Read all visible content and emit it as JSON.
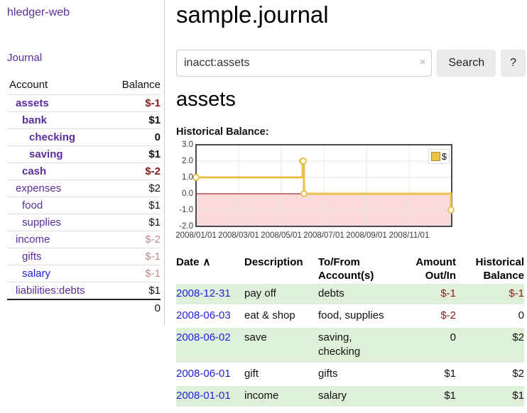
{
  "theme": {
    "purple-link": "#5a2d9e",
    "blue-link": "#2121df",
    "neg-strong": "#8c1a1a",
    "neg-soft": "#c38b8b",
    "row-green": "#dff0d8",
    "chart-line": "#e8c04a",
    "chart-line-border": "#b08c28",
    "chart-negative-fill": "#fadada",
    "chart-zero-line": "#8b0000"
  },
  "sidebar": {
    "app_title": "hledger-web",
    "journal_link": "Journal",
    "accounts_table": {
      "headers": {
        "account": "Account",
        "balance": "Balance"
      },
      "rows": [
        {
          "name": "assets",
          "balance": "$-1",
          "name_class": "d0 strong purple",
          "amount_class": "strong neg-strong"
        },
        {
          "name": "bank",
          "balance": "$1",
          "name_class": "d1 strong purple",
          "amount_class": "strong"
        },
        {
          "name": "checking",
          "balance": "0",
          "name_class": "d2 strong purple",
          "amount_class": "strong"
        },
        {
          "name": "saving",
          "balance": "$1",
          "name_class": "d2 strong purple",
          "amount_class": "strong"
        },
        {
          "name": "cash",
          "balance": "$-2",
          "name_class": "d1 strong purple",
          "amount_class": "strong neg-strong"
        },
        {
          "name": "expenses",
          "balance": "$2",
          "name_class": "d0 purple",
          "amount_class": ""
        },
        {
          "name": "food",
          "balance": "$1",
          "name_class": "d1 purple",
          "amount_class": ""
        },
        {
          "name": "supplies",
          "balance": "$1",
          "name_class": "d1 purple",
          "amount_class": ""
        },
        {
          "name": "income",
          "balance": "$-2",
          "name_class": "d0 purple",
          "amount_class": "neg-soft"
        },
        {
          "name": "gifts",
          "balance": "$-1",
          "name_class": "d1 purple",
          "amount_class": "neg-soft"
        },
        {
          "name": "salary",
          "balance": "$-1",
          "name_class": "d1 blue",
          "amount_class": "neg-soft"
        },
        {
          "name": "liabilities:debts",
          "balance": "$1",
          "name_class": "d0 purple",
          "amount_class": ""
        }
      ],
      "total": "0"
    }
  },
  "main": {
    "page_title": "sample.journal",
    "search": {
      "value": "inacct:assets",
      "clear_icon": "×",
      "search_button": "Search",
      "help_button": "?"
    },
    "account_heading": "assets",
    "chart_label": "Historical Balance:"
  },
  "chart_data": {
    "type": "line",
    "step": true,
    "title": "Historical Balance",
    "series": [
      {
        "name": "$",
        "points": [
          {
            "date": "2008-01-01",
            "value": 1
          },
          {
            "date": "2008-06-01",
            "value": 2
          },
          {
            "date": "2008-06-02",
            "value": 2
          },
          {
            "date": "2008-06-03",
            "value": 0
          },
          {
            "date": "2008-12-31",
            "value": -1
          }
        ]
      }
    ],
    "ylim": [
      -2,
      3
    ],
    "xlim": [
      "2008-01-01",
      "2008-12-31"
    ],
    "y_ticks": [
      {
        "label": "3.0",
        "value": 3
      },
      {
        "label": "2.0",
        "value": 2
      },
      {
        "label": "1.0",
        "value": 1
      },
      {
        "label": "0.0",
        "value": 0
      },
      {
        "label": "-1.0",
        "value": -1
      },
      {
        "label": "-2.0",
        "value": -2
      }
    ],
    "x_ticks": [
      {
        "label": "2008/01/01",
        "month": 0
      },
      {
        "label": "2008/03/01",
        "month": 2
      },
      {
        "label": "2008/05/01",
        "month": 4
      },
      {
        "label": "2008/07/01",
        "month": 6
      },
      {
        "label": "2008/09/01",
        "month": 8
      },
      {
        "label": "2008/11/01",
        "month": 10
      }
    ],
    "grid": true,
    "legend": {
      "label": "$",
      "position": "top-right"
    },
    "negative_region_highlighted": true
  },
  "register_table": {
    "headers": {
      "date": "Date",
      "sort_icon": "∧",
      "description": "Description",
      "accounts_line1": "To/From",
      "accounts_line2": "Account(s)",
      "amount_line1": "Amount",
      "amount_line2": "Out/In",
      "balance_line1": "Historical",
      "balance_line2": "Balance"
    },
    "rows": [
      {
        "date": "2008-12-31",
        "description": "pay off",
        "accounts": "debts",
        "amount": "$-1",
        "balance": "$-1",
        "row_class": "shaded",
        "amount_class": "neg",
        "balance_class": "neg"
      },
      {
        "date": "2008-06-03",
        "description": "eat & shop",
        "accounts": "food, supplies",
        "amount": "$-2",
        "balance": "0",
        "row_class": "",
        "amount_class": "neg",
        "balance_class": ""
      },
      {
        "date": "2008-06-02",
        "description": "save",
        "accounts": "saving, checking",
        "amount": "0",
        "balance": "$2",
        "row_class": "shaded",
        "amount_class": "",
        "balance_class": ""
      },
      {
        "date": "2008-06-01",
        "description": "gift",
        "accounts": "gifts",
        "amount": "$1",
        "balance": "$2",
        "row_class": "",
        "amount_class": "",
        "balance_class": ""
      },
      {
        "date": "2008-01-01",
        "description": "income",
        "accounts": "salary",
        "amount": "$1",
        "balance": "$1",
        "row_class": "shaded",
        "amount_class": "",
        "balance_class": ""
      }
    ]
  }
}
